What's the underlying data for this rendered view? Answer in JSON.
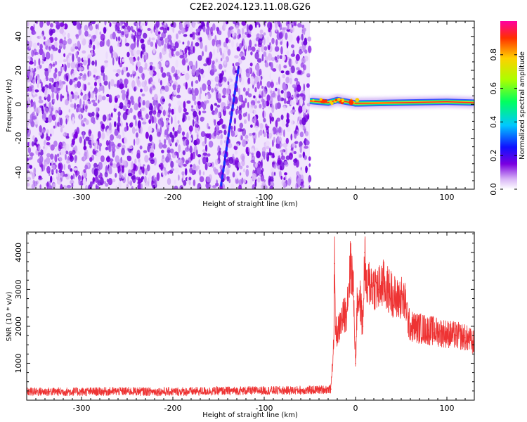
{
  "title": "C2E2.2024.123.11.08.G26",
  "chart_data": [
    {
      "type": "heatmap",
      "xlabel": "Height of straight line (km)",
      "ylabel": "Frequency (Hz)",
      "xlim": [
        -360,
        130
      ],
      "ylim": [
        -50,
        49
      ],
      "x_ticks": [
        -300,
        -200,
        -100,
        0,
        100
      ],
      "x_tick_labels": [
        "-300",
        "-200",
        "-100",
        "0",
        "100"
      ],
      "y_ticks": [
        -40,
        -20,
        0,
        20,
        40
      ],
      "y_tick_labels": [
        "-40",
        "-20",
        "0",
        "20",
        "40"
      ],
      "noise_region_x": [
        -360,
        -50
      ],
      "streak": {
        "x_start": -147,
        "y_start": -47,
        "x_end": -128,
        "y_end": 22
      },
      "signal_line": [
        {
          "x": -50,
          "y": 2
        },
        {
          "x": -30,
          "y": 1
        },
        {
          "x": -20,
          "y": 2.5
        },
        {
          "x": 0,
          "y": 0.5
        },
        {
          "x": 50,
          "y": 1
        },
        {
          "x": 100,
          "y": 1.5
        },
        {
          "x": 130,
          "y": 1
        }
      ],
      "colorbar": {
        "label": "Normalized spectral amplitude",
        "range": [
          0.0,
          1.0
        ],
        "ticks": [
          0.0,
          0.2,
          0.4,
          0.6,
          0.8
        ],
        "tick_labels": [
          "0.0",
          "0.2",
          "0.4",
          "0.6",
          "0.8"
        ],
        "colors": [
          "#ffffff",
          "#d8b4f6",
          "#7a00e0",
          "#1010ff",
          "#00c8ff",
          "#00ff60",
          "#aaff00",
          "#ffd000",
          "#ff3000",
          "#ff00a0"
        ]
      },
      "grid": false
    },
    {
      "type": "line",
      "xlabel": "Height of straight line (km)",
      "ylabel": "SNR (10 * v/v)",
      "xlim": [
        -360,
        130
      ],
      "ylim": [
        0,
        4550
      ],
      "x_ticks": [
        -300,
        -200,
        -100,
        0,
        100
      ],
      "x_tick_labels": [
        "-300",
        "-200",
        "-100",
        "0",
        "100"
      ],
      "y_ticks": [
        1000,
        2000,
        3000,
        4000
      ],
      "y_tick_labels": [
        "1000",
        "2000",
        "3000",
        "4000"
      ],
      "series": [
        {
          "color": "#ee3333",
          "x": [
            -360,
            -300,
            -250,
            -200,
            -150,
            -100,
            -50,
            -27,
            -24,
            -23,
            -22,
            -20,
            -15,
            -10,
            -5,
            -2,
            0,
            2,
            5,
            8,
            10,
            12,
            15,
            20,
            25,
            30,
            35,
            40,
            45,
            50,
            55,
            58,
            60,
            70,
            80,
            90,
            100,
            110,
            120,
            130
          ],
          "values": [
            230,
            230,
            240,
            230,
            250,
            260,
            270,
            300,
            1500,
            3700,
            2000,
            1800,
            2200,
            2400,
            3800,
            2800,
            1000,
            2800,
            2700,
            2000,
            4000,
            2900,
            3200,
            3100,
            3000,
            3150,
            3000,
            2900,
            2700,
            2800,
            2600,
            2100,
            2000,
            1950,
            1900,
            1850,
            1800,
            1750,
            1700,
            1550
          ]
        }
      ],
      "grid": false
    }
  ]
}
